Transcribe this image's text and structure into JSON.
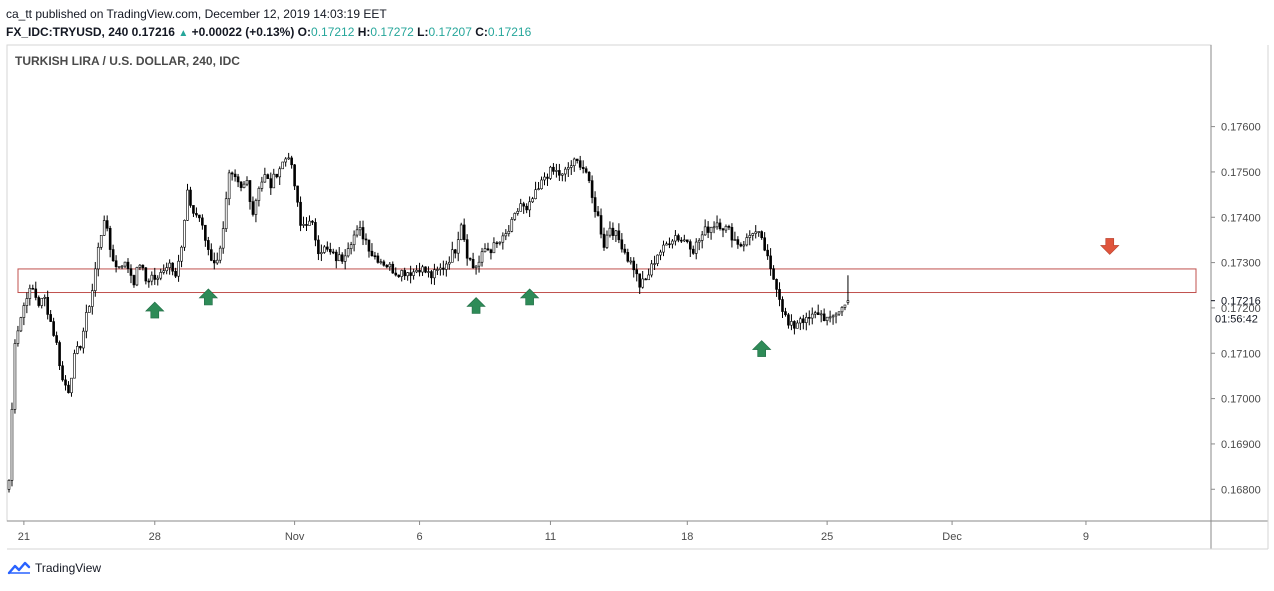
{
  "header": {
    "published_line": "ca_tt published on TradingView.com, December 12, 2019 14:03:19 EET",
    "symbol": "FX_IDC:TRYUSD, 240",
    "last": "0.17216",
    "change_arrow": "▲",
    "change": "+0.00022 (+0.13%)",
    "o_label": "O:",
    "o_value": "0.17212",
    "h_label": "H:",
    "h_value": "0.17272",
    "l_label": "L:",
    "l_value": "0.17207",
    "c_label": "C:",
    "c_value": "0.17216"
  },
  "footer": {
    "brand": "TradingView"
  },
  "colors": {
    "up_green": "#26a69a",
    "arrow_up": "#2e8b57",
    "arrow_down": "#e0543c",
    "zone_border": "#c0504d",
    "candle": "#000000"
  },
  "chart_data": {
    "type": "candlestick",
    "title": "TURKISH LIRA / U.S. DOLLAR, 240, IDC",
    "y_axis": {
      "ticks": [
        "0.17600",
        "0.17500",
        "0.17400",
        "0.17300",
        "0.17200",
        "0.17100",
        "0.17000",
        "0.16900",
        "0.16800"
      ],
      "range": [
        0.1673,
        0.1778
      ],
      "last_price_label": "0.17216",
      "countdown_label": "01:56:42"
    },
    "x_axis": {
      "ticks": [
        "21",
        "28",
        "Nov",
        "6",
        "11",
        "18",
        "25",
        "Dec",
        "9"
      ],
      "tick_bar_index": [
        5,
        49,
        96,
        138,
        182,
        228,
        275,
        317,
        362
      ]
    },
    "support_zone": {
      "low": 0.17234,
      "high": 0.17286
    },
    "markers": [
      {
        "type": "arrow-up",
        "bar": 49,
        "price": 0.17213
      },
      {
        "type": "arrow-up",
        "bar": 67,
        "price": 0.17242
      },
      {
        "type": "arrow-up",
        "bar": 157,
        "price": 0.17223
      },
      {
        "type": "arrow-up",
        "bar": 175,
        "price": 0.17242
      },
      {
        "type": "arrow-up",
        "bar": 253,
        "price": 0.17128
      },
      {
        "type": "arrow-down",
        "bar": 370,
        "price": 0.17318
      }
    ],
    "anchors": [
      [
        0,
        0.1682
      ],
      [
        2,
        0.1713
      ],
      [
        4,
        0.1718
      ],
      [
        6,
        0.1723
      ],
      [
        8,
        0.1724
      ],
      [
        10,
        0.1721
      ],
      [
        12,
        0.1722
      ],
      [
        14,
        0.1717
      ],
      [
        16,
        0.1712
      ],
      [
        18,
        0.1704
      ],
      [
        20,
        0.1702
      ],
      [
        22,
        0.1709
      ],
      [
        24,
        0.1712
      ],
      [
        26,
        0.1718
      ],
      [
        28,
        0.1724
      ],
      [
        30,
        0.1733
      ],
      [
        32,
        0.174
      ],
      [
        34,
        0.1733
      ],
      [
        36,
        0.1729
      ],
      [
        38,
        0.173
      ],
      [
        40,
        0.1729
      ],
      [
        42,
        0.1726
      ],
      [
        44,
        0.173
      ],
      [
        46,
        0.1726
      ],
      [
        48,
        0.1727
      ],
      [
        50,
        0.1726
      ],
      [
        52,
        0.1729
      ],
      [
        54,
        0.173
      ],
      [
        56,
        0.1728
      ],
      [
        58,
        0.1733
      ],
      [
        60,
        0.1745
      ],
      [
        62,
        0.1741
      ],
      [
        64,
        0.174
      ],
      [
        66,
        0.1735
      ],
      [
        68,
        0.1731
      ],
      [
        70,
        0.173
      ],
      [
        72,
        0.1738
      ],
      [
        74,
        0.1749
      ],
      [
        76,
        0.1748
      ],
      [
        78,
        0.1746
      ],
      [
        80,
        0.1748
      ],
      [
        82,
        0.1741
      ],
      [
        84,
        0.1747
      ],
      [
        86,
        0.1749
      ],
      [
        88,
        0.1747
      ],
      [
        90,
        0.175
      ],
      [
        92,
        0.1752
      ],
      [
        94,
        0.1754
      ],
      [
        96,
        0.1747
      ],
      [
        98,
        0.1738
      ],
      [
        100,
        0.1739
      ],
      [
        102,
        0.1738
      ],
      [
        104,
        0.1733
      ],
      [
        106,
        0.1733
      ],
      [
        108,
        0.1732
      ],
      [
        110,
        0.1731
      ],
      [
        112,
        0.1731
      ],
      [
        114,
        0.1734
      ],
      [
        116,
        0.1736
      ],
      [
        118,
        0.1737
      ],
      [
        120,
        0.1735
      ],
      [
        122,
        0.1732
      ],
      [
        124,
        0.1731
      ],
      [
        126,
        0.173
      ],
      [
        128,
        0.1729
      ],
      [
        130,
        0.1728
      ],
      [
        132,
        0.1728
      ],
      [
        134,
        0.1728
      ],
      [
        136,
        0.1728
      ],
      [
        138,
        0.1729
      ],
      [
        140,
        0.1728
      ],
      [
        142,
        0.1727
      ],
      [
        144,
        0.1728
      ],
      [
        146,
        0.1729
      ],
      [
        148,
        0.1731
      ],
      [
        150,
        0.1733
      ],
      [
        152,
        0.1739
      ],
      [
        154,
        0.1732
      ],
      [
        156,
        0.1729
      ],
      [
        158,
        0.173
      ],
      [
        160,
        0.1733
      ],
      [
        162,
        0.1733
      ],
      [
        164,
        0.1734
      ],
      [
        166,
        0.1735
      ],
      [
        168,
        0.1737
      ],
      [
        170,
        0.174
      ],
      [
        172,
        0.1743
      ],
      [
        174,
        0.1741
      ],
      [
        176,
        0.1744
      ],
      [
        178,
        0.1746
      ],
      [
        180,
        0.1749
      ],
      [
        182,
        0.175
      ],
      [
        184,
        0.175
      ],
      [
        186,
        0.1749
      ],
      [
        188,
        0.1751
      ],
      [
        190,
        0.1752
      ],
      [
        192,
        0.1752
      ],
      [
        194,
        0.175
      ],
      [
        196,
        0.1744
      ],
      [
        198,
        0.174
      ],
      [
        200,
        0.1734
      ],
      [
        202,
        0.1738
      ],
      [
        204,
        0.1736
      ],
      [
        206,
        0.1734
      ],
      [
        208,
        0.1731
      ],
      [
        210,
        0.1729
      ],
      [
        212,
        0.1725
      ],
      [
        214,
        0.1726
      ],
      [
        216,
        0.1729
      ],
      [
        218,
        0.1732
      ],
      [
        220,
        0.1733
      ],
      [
        222,
        0.1735
      ],
      [
        224,
        0.1736
      ],
      [
        226,
        0.1735
      ],
      [
        228,
        0.1735
      ],
      [
        230,
        0.1733
      ],
      [
        232,
        0.1735
      ],
      [
        234,
        0.1737
      ],
      [
        236,
        0.1738
      ],
      [
        238,
        0.1739
      ],
      [
        240,
        0.1738
      ],
      [
        242,
        0.1737
      ],
      [
        244,
        0.1735
      ],
      [
        246,
        0.1734
      ],
      [
        248,
        0.1735
      ],
      [
        250,
        0.1737
      ],
      [
        252,
        0.1736
      ],
      [
        254,
        0.1733
      ],
      [
        256,
        0.1728
      ],
      [
        258,
        0.1725
      ],
      [
        260,
        0.172
      ],
      [
        262,
        0.1716
      ],
      [
        264,
        0.1716
      ],
      [
        266,
        0.1718
      ],
      [
        268,
        0.1717
      ],
      [
        270,
        0.1718
      ],
      [
        272,
        0.1719
      ],
      [
        274,
        0.1718
      ],
      [
        276,
        0.1717
      ],
      [
        278,
        0.1719
      ],
      [
        280,
        0.172
      ],
      [
        282,
        0.1721
      ]
    ]
  }
}
